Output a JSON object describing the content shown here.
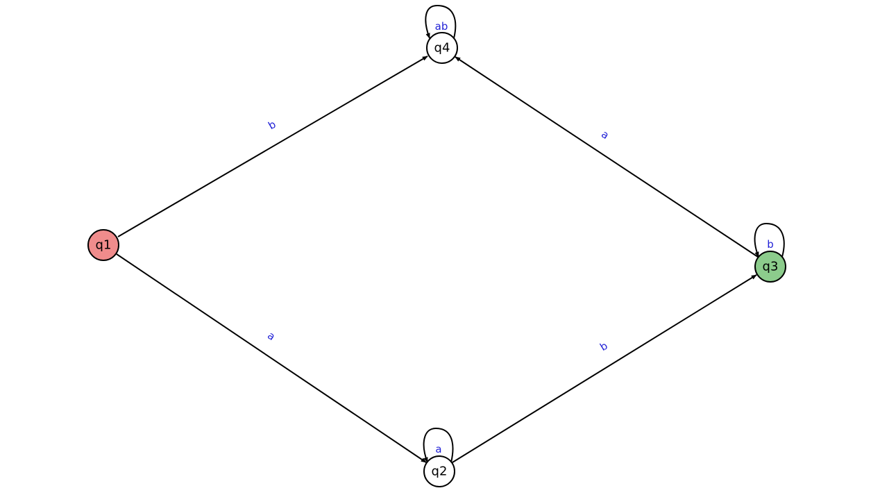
{
  "diagram": {
    "type": "finite-automaton",
    "colors": {
      "start_state": "#f08c8c",
      "accept_state": "#8ccc8c",
      "normal_state": "#ffffff",
      "edge": "#000000",
      "edge_label": "#1f1fd6"
    },
    "states": [
      {
        "id": "q1",
        "label": "q1",
        "kind": "start"
      },
      {
        "id": "q2",
        "label": "q2",
        "kind": "normal"
      },
      {
        "id": "q3",
        "label": "q3",
        "kind": "accept"
      },
      {
        "id": "q4",
        "label": "q4",
        "kind": "normal"
      }
    ],
    "transitions": [
      {
        "from": "q1",
        "to": "q4",
        "label": "b"
      },
      {
        "from": "q1",
        "to": "q2",
        "label": "a"
      },
      {
        "from": "q2",
        "to": "q3",
        "label": "b"
      },
      {
        "from": "q3",
        "to": "q4",
        "label": "a"
      },
      {
        "from": "q4",
        "to": "q4",
        "label": "ab"
      },
      {
        "from": "q2",
        "to": "q2",
        "label": "a"
      },
      {
        "from": "q3",
        "to": "q3",
        "label": "b"
      }
    ]
  }
}
